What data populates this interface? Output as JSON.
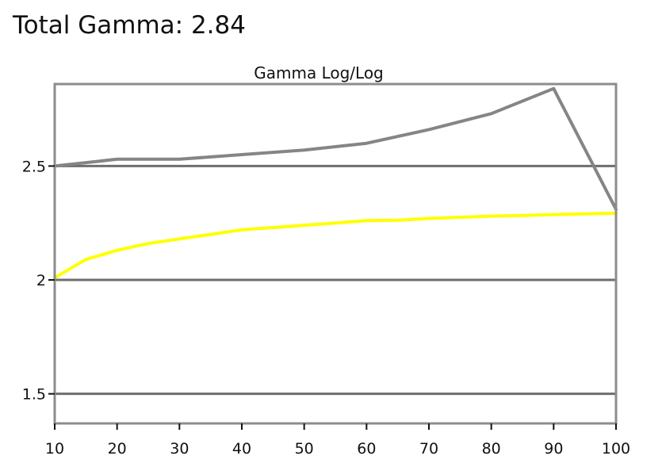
{
  "header": {
    "title": "Total Gamma: 2.84"
  },
  "colors": {
    "frame": "#8c8c8c",
    "gridline": "#6e6e6e",
    "measured": "#858585",
    "target": "#ffff00"
  },
  "chart_data": {
    "type": "line",
    "title": "Gamma Log/Log",
    "xlabel": "",
    "ylabel": "",
    "x": [
      10,
      20,
      30,
      40,
      50,
      60,
      70,
      80,
      90,
      100
    ],
    "xlim": [
      10,
      100
    ],
    "ylim": [
      1.37,
      2.86
    ],
    "x_ticks": [
      "10",
      "20",
      "30",
      "40",
      "50",
      "60",
      "70",
      "80",
      "90",
      "100"
    ],
    "y_ticks": [
      {
        "value": 1.5,
        "label": "1.5"
      },
      {
        "value": 2.0,
        "label": "2"
      },
      {
        "value": 2.5,
        "label": "2.5"
      }
    ],
    "grid": true,
    "series": [
      {
        "color": "#858585",
        "x": [
          10,
          20,
          30,
          40,
          50,
          60,
          70,
          80,
          90,
          100
        ],
        "values": [
          2.5,
          2.53,
          2.53,
          2.55,
          2.57,
          2.6,
          2.66,
          2.73,
          2.84,
          2.31
        ]
      },
      {
        "color": "#ffff00",
        "x": [
          10,
          15,
          20,
          25,
          30,
          35,
          40,
          45,
          50,
          55,
          60,
          65,
          70,
          75,
          80,
          85,
          90,
          95,
          100
        ],
        "values": [
          2.01,
          2.09,
          2.13,
          2.16,
          2.18,
          2.2,
          2.22,
          2.23,
          2.24,
          2.25,
          2.26,
          2.262,
          2.27,
          2.275,
          2.28,
          2.283,
          2.287,
          2.29,
          2.293
        ]
      }
    ]
  }
}
